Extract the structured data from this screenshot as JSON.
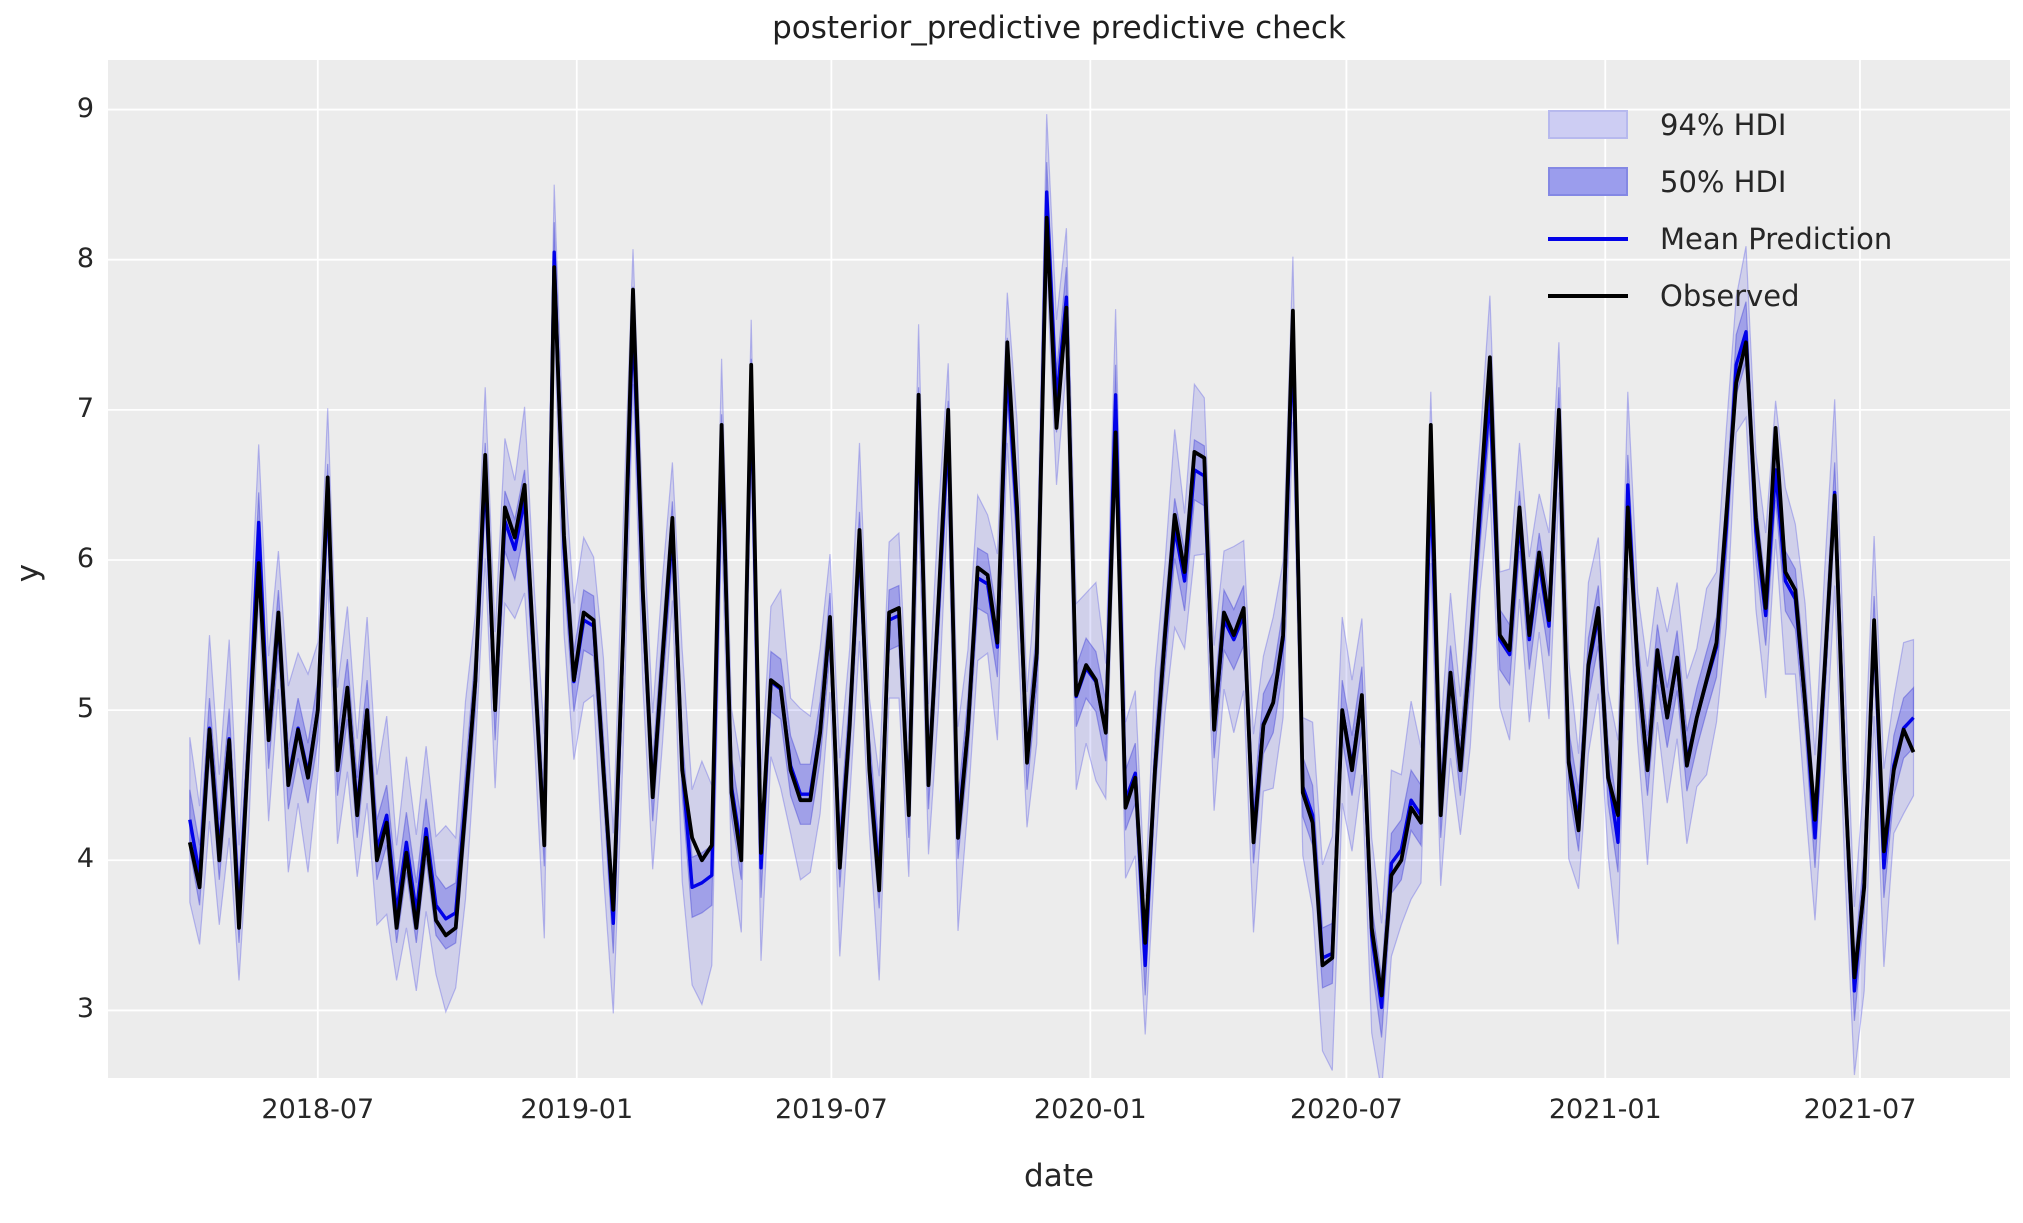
{
  "title": "posterior_predictive predictive check",
  "axes": {
    "xlabel": "date",
    "ylabel": "y",
    "yticks": [
      9,
      8,
      7,
      6,
      5,
      4,
      3
    ],
    "xticks": [
      {
        "label": "2018-07",
        "week": 13.0
      },
      {
        "label": "2019-01",
        "week": 39.29
      },
      {
        "label": "2019-07",
        "week": 65.14
      },
      {
        "label": "2020-01",
        "week": 91.43
      },
      {
        "label": "2020-07",
        "week": 117.43
      },
      {
        "label": "2021-01",
        "week": 143.71
      },
      {
        "label": "2021-07",
        "week": 169.57
      }
    ],
    "xlim_weeks": [
      -8.3,
      184.8
    ],
    "ylim": [
      2.55,
      9.33
    ]
  },
  "colors": {
    "axes_background": "#ececec",
    "grid": "#ffffff",
    "observed_line": "#000000",
    "mean_line": "#0202e8",
    "hdi94_fill": "rgba(82,82,228,0.18)",
    "hdi94_edge": "rgba(82,82,228,0.35)",
    "hdi50_fill": "rgba(82,82,228,0.38)",
    "hdi50_edge": "rgba(70,70,215,0.45)",
    "text": "#262626"
  },
  "legend": [
    {
      "label": "94% HDI",
      "type": "patch",
      "fill": "#cdcdf3",
      "edge": "#b7b9ee"
    },
    {
      "label": "50% HDI",
      "type": "patch",
      "fill": "#9b9ded",
      "edge": "#8488e4"
    },
    {
      "label": "Mean Prediction",
      "type": "line",
      "color": "#0202e8"
    },
    {
      "label": "Observed",
      "type": "line",
      "color": "#000000"
    }
  ],
  "chart_data": {
    "type": "line",
    "title": "posterior_predictive predictive check",
    "xlabel": "date",
    "ylabel": "y",
    "x_start_date": "2018-04-01",
    "x_frequency": "weekly",
    "n_points": 176,
    "legend_position": "upper right",
    "grid": true,
    "series": [
      {
        "name": "Observed",
        "values": [
          4.12,
          3.82,
          4.87,
          4.0,
          4.8,
          3.55,
          4.8,
          5.98,
          4.8,
          5.65,
          4.5,
          4.87,
          4.55,
          5.0,
          6.55,
          4.6,
          5.15,
          4.3,
          5.0,
          4.0,
          4.25,
          3.55,
          4.05,
          3.55,
          4.15,
          3.6,
          3.5,
          3.55,
          4.35,
          5.2,
          6.7,
          5.0,
          6.35,
          6.15,
          6.5,
          5.3,
          4.1,
          7.95,
          6.16,
          5.2,
          5.65,
          5.6,
          4.6,
          3.67,
          5.5,
          7.8,
          5.8,
          4.42,
          5.35,
          6.28,
          4.6,
          4.15,
          4.0,
          4.1,
          6.9,
          4.45,
          4.0,
          7.3,
          4.05,
          5.2,
          5.15,
          4.6,
          4.4,
          4.4,
          4.85,
          5.62,
          3.95,
          4.9,
          6.2,
          4.6,
          3.8,
          5.65,
          5.68,
          4.3,
          7.1,
          4.5,
          5.7,
          7.0,
          4.15,
          4.87,
          5.95,
          5.9,
          5.45,
          7.45,
          6.35,
          4.65,
          5.38,
          8.28,
          6.88,
          7.68,
          5.1,
          5.3,
          5.2,
          4.85,
          6.85,
          4.35,
          4.55,
          3.45,
          4.6,
          5.5,
          6.3,
          5.92,
          6.72,
          6.68,
          4.87,
          5.65,
          5.5,
          5.68,
          4.12,
          4.9,
          5.05,
          5.5,
          7.66,
          4.45,
          4.25,
          3.3,
          3.35,
          5.0,
          4.6,
          5.1,
          3.55,
          3.1,
          3.9,
          4.0,
          4.35,
          4.25,
          6.9,
          4.3,
          5.25,
          4.6,
          5.4,
          6.4,
          7.35,
          5.5,
          5.4,
          6.35,
          5.5,
          6.05,
          5.6,
          7.0,
          4.65,
          4.2,
          5.3,
          5.68,
          4.55,
          4.3,
          6.35,
          5.3,
          4.6,
          5.4,
          4.95,
          5.35,
          4.63,
          4.95,
          5.2,
          5.45,
          6.3,
          7.18,
          7.45,
          6.28,
          5.68,
          6.88,
          5.92,
          5.8,
          5.05,
          4.27,
          5.3,
          6.43,
          4.6,
          3.22,
          3.82,
          5.6,
          4.06,
          4.6,
          4.87,
          4.72
        ]
      },
      {
        "name": "Mean Prediction",
        "values": [
          4.27,
          3.9,
          4.88,
          4.07,
          4.81,
          3.65,
          4.81,
          6.25,
          4.81,
          5.6,
          4.54,
          4.88,
          4.58,
          5.0,
          6.44,
          4.63,
          5.14,
          4.35,
          5.0,
          4.07,
          4.3,
          3.65,
          4.12,
          3.65,
          4.21,
          3.7,
          3.61,
          3.65,
          4.4,
          5.19,
          6.58,
          5.0,
          6.26,
          6.07,
          6.4,
          5.28,
          4.16,
          8.05,
          6.08,
          5.19,
          5.6,
          5.56,
          4.63,
          3.58,
          5.47,
          7.62,
          5.74,
          4.46,
          5.33,
          6.19,
          4.63,
          3.82,
          3.85,
          3.9,
          6.77,
          4.49,
          4.07,
          7.14,
          3.95,
          5.19,
          5.14,
          4.63,
          4.44,
          4.44,
          4.86,
          5.58,
          4.02,
          4.91,
          6.12,
          4.63,
          3.88,
          5.6,
          5.63,
          4.35,
          6.95,
          4.54,
          5.65,
          6.86,
          4.21,
          4.88,
          5.88,
          5.84,
          5.42,
          7.28,
          6.26,
          4.67,
          5.35,
          8.45,
          7.05,
          7.75,
          5.09,
          5.28,
          5.19,
          4.86,
          7.1,
          4.4,
          4.58,
          3.3,
          4.63,
          5.47,
          6.21,
          5.86,
          6.6,
          6.56,
          4.88,
          5.6,
          5.47,
          5.63,
          4.18,
          4.91,
          5.05,
          5.47,
          7.47,
          4.49,
          4.3,
          3.35,
          3.38,
          5.0,
          4.63,
          5.09,
          3.5,
          3.02,
          3.98,
          4.07,
          4.4,
          4.3,
          6.55,
          4.35,
          5.23,
          4.63,
          5.37,
          6.3,
          7.1,
          5.47,
          5.37,
          6.26,
          5.47,
          5.98,
          5.56,
          6.95,
          4.67,
          4.26,
          5.28,
          5.63,
          4.58,
          4.12,
          6.5,
          5.28,
          4.63,
          5.37,
          4.95,
          5.33,
          4.66,
          4.95,
          5.19,
          5.42,
          6.21,
          7.3,
          7.52,
          6.19,
          5.63,
          6.6,
          5.86,
          5.74,
          5.05,
          4.15,
          5.28,
          6.45,
          4.63,
          3.13,
          3.85,
          5.56,
          3.95,
          4.63,
          4.88,
          4.95
        ]
      }
    ],
    "bands": [
      {
        "name": "94% HDI",
        "around": "Mean Prediction",
        "halfwidth": [
          0.55,
          0.46,
          0.62,
          0.5,
          0.66,
          0.45,
          0.57,
          0.52,
          0.55,
          0.46,
          0.62,
          0.5,
          0.66,
          0.45,
          0.57,
          0.52,
          0.55,
          0.46,
          0.62,
          0.5,
          0.66,
          0.45,
          0.57,
          0.52,
          0.55,
          0.46,
          0.62,
          0.5,
          0.66,
          0.45,
          0.57,
          0.52,
          0.55,
          0.46,
          0.62,
          0.5,
          0.68,
          0.45,
          0.57,
          0.52,
          0.55,
          0.46,
          0.72,
          0.6,
          0.76,
          0.45,
          0.57,
          0.52,
          0.55,
          0.46,
          0.77,
          0.65,
          0.81,
          0.6,
          0.57,
          0.52,
          0.55,
          0.46,
          0.62,
          0.5,
          0.66,
          0.45,
          0.57,
          0.52,
          0.55,
          0.46,
          0.66,
          0.5,
          0.66,
          0.45,
          0.68,
          0.52,
          0.55,
          0.46,
          0.62,
          0.5,
          0.66,
          0.45,
          0.68,
          0.52,
          0.55,
          0.46,
          0.62,
          0.5,
          0.66,
          0.45,
          0.57,
          0.52,
          0.55,
          0.46,
          0.62,
          0.5,
          0.66,
          0.45,
          0.57,
          0.52,
          0.55,
          0.46,
          0.62,
          0.5,
          0.66,
          0.45,
          0.57,
          0.52,
          0.55,
          0.46,
          0.62,
          0.5,
          0.66,
          0.45,
          0.57,
          0.52,
          0.55,
          0.46,
          0.62,
          0.62,
          0.78,
          0.62,
          0.57,
          0.52,
          0.65,
          0.56,
          0.62,
          0.5,
          0.66,
          0.45,
          0.57,
          0.52,
          0.55,
          0.46,
          0.62,
          0.5,
          0.66,
          0.45,
          0.57,
          0.52,
          0.55,
          0.46,
          0.62,
          0.5,
          0.66,
          0.45,
          0.57,
          0.52,
          0.55,
          0.68,
          0.62,
          0.5,
          0.66,
          0.45,
          0.57,
          0.52,
          0.55,
          0.46,
          0.62,
          0.5,
          0.66,
          0.45,
          0.57,
          0.52,
          0.55,
          0.46,
          0.62,
          0.5,
          0.66,
          0.55,
          0.67,
          0.62,
          0.65,
          0.56,
          0.72,
          0.6,
          0.66,
          0.45,
          0.57,
          0.52
        ]
      },
      {
        "name": "50% HDI",
        "around": "Mean Prediction",
        "halfwidth": 0.2
      }
    ]
  }
}
